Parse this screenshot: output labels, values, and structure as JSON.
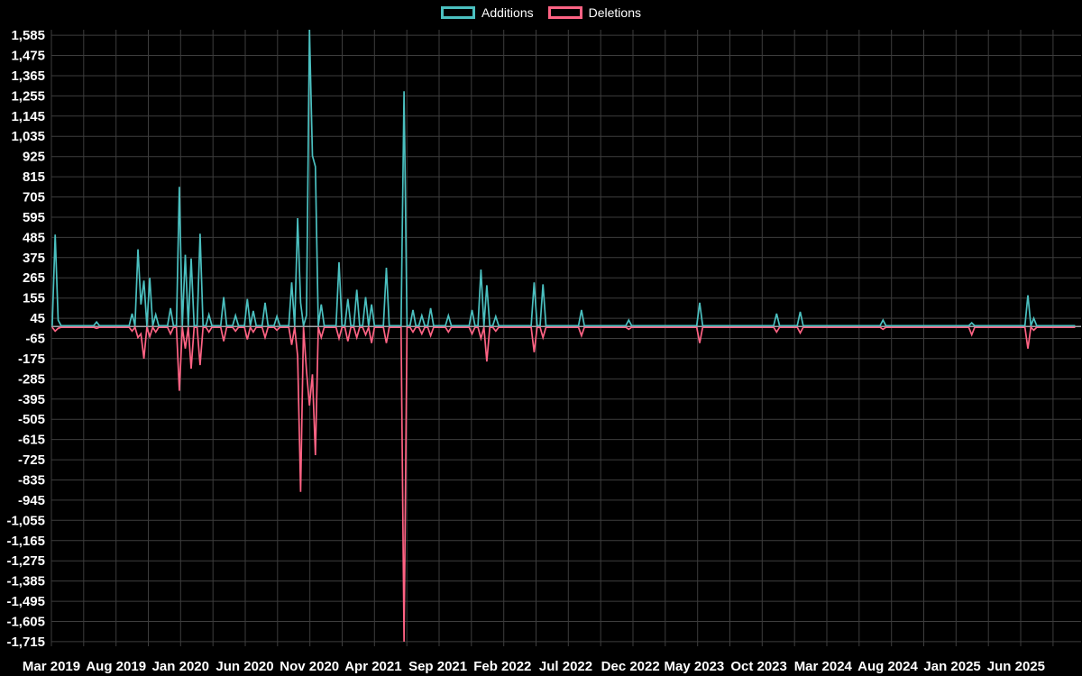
{
  "page": {
    "background": "#000000",
    "text_color": "#ffffff"
  },
  "chart_data": {
    "type": "line",
    "title": "",
    "xlabel": "",
    "ylabel": "",
    "legend_position": "top",
    "grid": true,
    "grid_color": "#3d3d3d",
    "zero_line_color": "#a0a4a8",
    "series": [
      {
        "name": "Additions",
        "color": "#4bc0c0"
      },
      {
        "name": "Deletions",
        "color": "#ff6384"
      }
    ],
    "x_domain": [
      "2019-03-01",
      "2025-11-02"
    ],
    "data_start": "2019-03-03",
    "data_end": "2025-10-19",
    "y_domain": [
      -1740,
      1615
    ],
    "y_tick_labels": [
      "1,585",
      "1,475",
      "1,365",
      "1,255",
      "1,145",
      "1,035",
      "925",
      "815",
      "705",
      "595",
      "485",
      "375",
      "265",
      "155",
      "45",
      "-65",
      "-175",
      "-285",
      "-395",
      "-505",
      "-615",
      "-725",
      "-835",
      "-945",
      "-1,055",
      "-1,165",
      "-1,275",
      "-1,385",
      "-1,495",
      "-1,605",
      "-1,715"
    ],
    "x_ticks": [
      {
        "label": "Mar 2019",
        "date": "2019-03-01"
      },
      {
        "label": "Aug 2019",
        "date": "2019-08-01"
      },
      {
        "label": "Jan 2020",
        "date": "2020-01-01"
      },
      {
        "label": "Jun 2020",
        "date": "2020-06-01"
      },
      {
        "label": "Nov 2020",
        "date": "2020-11-01"
      },
      {
        "label": "Apr 2021",
        "date": "2021-04-01"
      },
      {
        "label": "Sep 2021",
        "date": "2021-09-01"
      },
      {
        "label": "Feb 2022",
        "date": "2022-02-01"
      },
      {
        "label": "Jul 2022",
        "date": "2022-07-01"
      },
      {
        "label": "Dec 2022",
        "date": "2022-12-01"
      },
      {
        "label": "May 2023",
        "date": "2023-05-01"
      },
      {
        "label": "Oct 2023",
        "date": "2023-10-01"
      },
      {
        "label": "Mar 2024",
        "date": "2024-03-01"
      },
      {
        "label": "Aug 2024",
        "date": "2024-08-01"
      },
      {
        "label": "Jan 2025",
        "date": "2025-01-01"
      },
      {
        "label": "Jun 2025",
        "date": "2025-06-01"
      }
    ],
    "baseline": {
      "additions": 4,
      "deletions": -4
    },
    "weekly_spikes": [
      [
        "2019-03-10",
        500,
        -25
      ],
      [
        "2019-03-17",
        35,
        -10
      ],
      [
        "2019-06-16",
        25,
        -10
      ],
      [
        "2019-09-08",
        70,
        -25
      ],
      [
        "2019-09-22",
        420,
        -60
      ],
      [
        "2019-09-29",
        120,
        -40
      ],
      [
        "2019-10-06",
        250,
        -175
      ],
      [
        "2019-10-20",
        265,
        -55
      ],
      [
        "2019-11-03",
        65,
        -30
      ],
      [
        "2019-12-08",
        100,
        -40
      ],
      [
        "2019-12-29",
        760,
        -350
      ],
      [
        "2020-01-12",
        390,
        -120
      ],
      [
        "2020-01-26",
        370,
        -230
      ],
      [
        "2020-02-16",
        505,
        -210
      ],
      [
        "2020-03-08",
        65,
        -30
      ],
      [
        "2020-04-12",
        160,
        -80
      ],
      [
        "2020-05-10",
        60,
        -25
      ],
      [
        "2020-06-07",
        150,
        -70
      ],
      [
        "2020-06-21",
        85,
        -30
      ],
      [
        "2020-07-19",
        130,
        -60
      ],
      [
        "2020-08-16",
        55,
        -20
      ],
      [
        "2020-09-20",
        240,
        -100
      ],
      [
        "2020-10-04",
        590,
        -160
      ],
      [
        "2020-10-11",
        130,
        -900
      ],
      [
        "2020-10-25",
        60,
        -240
      ],
      [
        "2020-11-01",
        1615,
        -430
      ],
      [
        "2020-11-08",
        930,
        -260
      ],
      [
        "2020-11-15",
        870,
        -700
      ],
      [
        "2020-11-29",
        120,
        -60
      ],
      [
        "2021-01-10",
        350,
        -65
      ],
      [
        "2021-01-31",
        150,
        -80
      ],
      [
        "2021-02-21",
        200,
        -60
      ],
      [
        "2021-03-14",
        160,
        -45
      ],
      [
        "2021-03-28",
        120,
        -90
      ],
      [
        "2021-05-02",
        320,
        -90
      ],
      [
        "2021-06-13",
        1280,
        -1715
      ],
      [
        "2021-07-04",
        90,
        -30
      ],
      [
        "2021-07-25",
        60,
        -40
      ],
      [
        "2021-08-15",
        100,
        -50
      ],
      [
        "2021-09-26",
        60,
        -30
      ],
      [
        "2021-11-21",
        90,
        -40
      ],
      [
        "2021-12-12",
        310,
        -65
      ],
      [
        "2021-12-26",
        225,
        -190
      ],
      [
        "2022-01-16",
        55,
        -25
      ],
      [
        "2022-04-17",
        240,
        -140
      ],
      [
        "2022-05-08",
        230,
        -60
      ],
      [
        "2022-08-07",
        90,
        -50
      ],
      [
        "2022-11-27",
        35,
        -15
      ],
      [
        "2023-05-14",
        130,
        -90
      ],
      [
        "2023-11-12",
        70,
        -30
      ],
      [
        "2024-01-07",
        80,
        -35
      ],
      [
        "2024-07-21",
        35,
        -15
      ],
      [
        "2025-02-16",
        20,
        -45
      ],
      [
        "2025-06-29",
        170,
        -120
      ],
      [
        "2025-07-13",
        45,
        -20
      ]
    ]
  }
}
